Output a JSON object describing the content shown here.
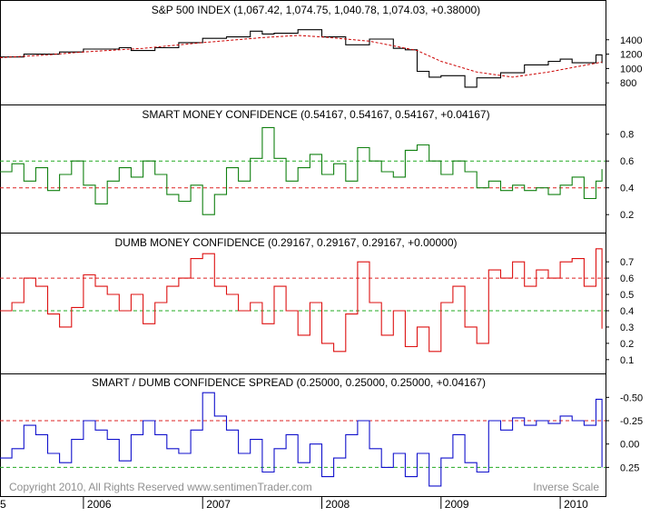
{
  "chart_data": [
    {
      "type": "line",
      "title": "S&P 500 INDEX (1,067.42, 1,074.75, 1,040.78, 1,074.03, +0.38000)",
      "ylim": [
        600,
        1650
      ],
      "yticks": [
        "800",
        "1000",
        "1200",
        "1400"
      ],
      "yticks_values": [
        800,
        1000,
        1200,
        1400
      ],
      "series": [
        {
          "key": "price",
          "color": "#000000",
          "x": [
            2005.3,
            2005.5,
            2005.8,
            2006.0,
            2006.3,
            2006.4,
            2006.6,
            2006.8,
            2007.0,
            2007.2,
            2007.4,
            2007.5,
            2007.6,
            2007.8,
            2008.0,
            2008.2,
            2008.4,
            2008.6,
            2008.7,
            2008.8,
            2008.9,
            2009.0,
            2009.2,
            2009.3,
            2009.5,
            2009.7,
            2009.9,
            2010.0,
            2010.1,
            2010.3,
            2010.35
          ],
          "values": [
            1160,
            1200,
            1230,
            1270,
            1290,
            1250,
            1290,
            1360,
            1420,
            1440,
            1520,
            1480,
            1490,
            1540,
            1440,
            1330,
            1410,
            1280,
            1260,
            960,
            880,
            900,
            740,
            870,
            940,
            1050,
            1100,
            1130,
            1080,
            1190,
            1074
          ]
        },
        {
          "key": "ma",
          "color": "#cc0000",
          "dashed": true,
          "x": [
            2005.3,
            2005.7,
            2006.0,
            2006.5,
            2007.0,
            2007.5,
            2007.8,
            2008.0,
            2008.4,
            2008.8,
            2009.0,
            2009.3,
            2009.6,
            2009.9,
            2010.35
          ],
          "values": [
            1150,
            1190,
            1230,
            1280,
            1360,
            1430,
            1460,
            1440,
            1380,
            1250,
            1100,
            950,
            880,
            950,
            1090
          ]
        }
      ]
    },
    {
      "type": "line",
      "title": "SMART MONEY CONFIDENCE (0.54167, 0.54167, 0.54167, +0.04167)",
      "ylim": [
        0.12,
        0.9
      ],
      "yticks": [
        "0.2",
        "0.4",
        "0.6",
        "0.8"
      ],
      "yticks_values": [
        0.2,
        0.4,
        0.6,
        0.8
      ],
      "ref_lines": [
        0.6,
        0.4
      ],
      "ref_colors": [
        "#22aa22",
        "#dd2222"
      ],
      "series": [
        {
          "key": "smart",
          "color": "#108010",
          "x": [
            2005.3,
            2005.4,
            2005.5,
            2005.6,
            2005.7,
            2005.8,
            2005.9,
            2006.0,
            2006.1,
            2006.2,
            2006.3,
            2006.4,
            2006.5,
            2006.6,
            2006.7,
            2006.8,
            2006.9,
            2007.0,
            2007.1,
            2007.2,
            2007.3,
            2007.4,
            2007.5,
            2007.6,
            2007.7,
            2007.8,
            2007.9,
            2008.0,
            2008.1,
            2008.2,
            2008.3,
            2008.4,
            2008.5,
            2008.6,
            2008.7,
            2008.8,
            2008.9,
            2009.0,
            2009.1,
            2009.2,
            2009.3,
            2009.4,
            2009.5,
            2009.6,
            2009.7,
            2009.8,
            2009.9,
            2010.0,
            2010.1,
            2010.2,
            2010.3,
            2010.35
          ],
          "values": [
            0.52,
            0.58,
            0.45,
            0.55,
            0.38,
            0.5,
            0.6,
            0.42,
            0.28,
            0.45,
            0.55,
            0.48,
            0.6,
            0.5,
            0.35,
            0.3,
            0.42,
            0.2,
            0.35,
            0.55,
            0.45,
            0.62,
            0.85,
            0.62,
            0.45,
            0.55,
            0.65,
            0.5,
            0.58,
            0.45,
            0.7,
            0.6,
            0.52,
            0.48,
            0.68,
            0.72,
            0.6,
            0.5,
            0.6,
            0.52,
            0.4,
            0.45,
            0.38,
            0.42,
            0.38,
            0.4,
            0.35,
            0.42,
            0.48,
            0.32,
            0.45,
            0.54
          ]
        }
      ]
    },
    {
      "type": "line",
      "title": "DUMB MONEY CONFIDENCE (0.29167, 0.29167, 0.29167, +0.00000)",
      "ylim": [
        0.06,
        0.79
      ],
      "yticks": [
        "0.1",
        "0.2",
        "0.3",
        "0.4",
        "0.5",
        "0.6",
        "0.7"
      ],
      "yticks_values": [
        0.1,
        0.2,
        0.3,
        0.4,
        0.5,
        0.6,
        0.7
      ],
      "ref_lines": [
        0.6,
        0.4
      ],
      "ref_colors": [
        "#dd2222",
        "#22aa22"
      ],
      "series": [
        {
          "key": "dumb",
          "color": "#dd1111",
          "x": [
            2005.3,
            2005.4,
            2005.5,
            2005.6,
            2005.7,
            2005.8,
            2005.9,
            2006.0,
            2006.1,
            2006.2,
            2006.3,
            2006.4,
            2006.5,
            2006.6,
            2006.7,
            2006.8,
            2006.9,
            2007.0,
            2007.1,
            2007.2,
            2007.3,
            2007.4,
            2007.5,
            2007.6,
            2007.7,
            2007.8,
            2007.9,
            2008.0,
            2008.1,
            2008.2,
            2008.3,
            2008.4,
            2008.5,
            2008.6,
            2008.7,
            2008.8,
            2008.9,
            2009.0,
            2009.1,
            2009.2,
            2009.3,
            2009.4,
            2009.5,
            2009.6,
            2009.7,
            2009.8,
            2009.9,
            2010.0,
            2010.1,
            2010.2,
            2010.3,
            2010.35
          ],
          "values": [
            0.4,
            0.45,
            0.6,
            0.55,
            0.38,
            0.3,
            0.42,
            0.62,
            0.55,
            0.5,
            0.4,
            0.5,
            0.32,
            0.45,
            0.55,
            0.6,
            0.72,
            0.75,
            0.55,
            0.5,
            0.4,
            0.45,
            0.32,
            0.55,
            0.4,
            0.25,
            0.45,
            0.2,
            0.15,
            0.38,
            0.7,
            0.45,
            0.25,
            0.4,
            0.18,
            0.3,
            0.15,
            0.45,
            0.55,
            0.3,
            0.2,
            0.65,
            0.6,
            0.7,
            0.55,
            0.65,
            0.6,
            0.7,
            0.72,
            0.55,
            0.78,
            0.29
          ]
        }
      ]
    },
    {
      "type": "line",
      "title": "SMART / DUMB CONFIDENCE SPREAD (0.25000, 0.25000, 0.25000, +0.04167)",
      "ylim": [
        0.48,
        -0.62
      ],
      "inverse": true,
      "yticks": [
        "-0.50",
        "-0.25",
        "0.00",
        "0.25"
      ],
      "yticks_values": [
        -0.5,
        -0.25,
        0.0,
        0.25
      ],
      "ref_lines": [
        -0.25,
        0.25
      ],
      "ref_colors": [
        "#dd2222",
        "#22aa22"
      ],
      "series": [
        {
          "key": "spread",
          "color": "#1111cc",
          "x": [
            2005.3,
            2005.4,
            2005.5,
            2005.6,
            2005.7,
            2005.8,
            2005.9,
            2006.0,
            2006.1,
            2006.2,
            2006.3,
            2006.4,
            2006.5,
            2006.6,
            2006.7,
            2006.8,
            2006.9,
            2007.0,
            2007.1,
            2007.2,
            2007.3,
            2007.4,
            2007.5,
            2007.6,
            2007.7,
            2007.8,
            2007.9,
            2008.0,
            2008.1,
            2008.2,
            2008.3,
            2008.4,
            2008.5,
            2008.6,
            2008.7,
            2008.8,
            2008.9,
            2009.0,
            2009.1,
            2009.2,
            2009.3,
            2009.4,
            2009.5,
            2009.6,
            2009.7,
            2009.8,
            2009.9,
            2010.0,
            2010.1,
            2010.2,
            2010.3,
            2010.35
          ],
          "values": [
            0.15,
            0.05,
            -0.2,
            -0.1,
            0.1,
            0.2,
            -0.05,
            -0.25,
            -0.15,
            -0.05,
            0.18,
            -0.1,
            -0.25,
            -0.1,
            0.05,
            0.1,
            -0.15,
            -0.55,
            -0.3,
            -0.15,
            0.1,
            -0.05,
            0.3,
            0.05,
            -0.1,
            0.2,
            0.0,
            0.35,
            0.15,
            -0.1,
            -0.25,
            0.05,
            0.25,
            0.1,
            0.35,
            0.1,
            0.45,
            0.15,
            -0.1,
            0.2,
            0.3,
            -0.25,
            -0.15,
            -0.28,
            -0.2,
            -0.25,
            -0.22,
            -0.3,
            -0.25,
            -0.2,
            -0.48,
            0.25
          ]
        }
      ]
    }
  ],
  "x_axis": {
    "labels": [
      "2006",
      "2007",
      "2008",
      "2009",
      "2010"
    ],
    "label_values": [
      2006.0,
      2007.0,
      2008.0,
      2009.0,
      2010.0
    ],
    "range": [
      2005.3,
      2010.38
    ],
    "left_edge_label": "5"
  },
  "footer": {
    "copyright": "Copyright 2010, All Rights Reserved  www.sentimenTrader.com",
    "scale_note": "Inverse Scale"
  },
  "colors": {
    "frame": "#000000",
    "text": "#000000",
    "footer_text": "#909090"
  }
}
